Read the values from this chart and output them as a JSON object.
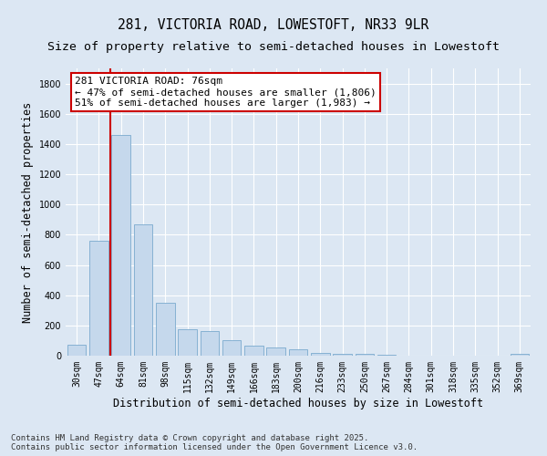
{
  "title_line1": "281, VICTORIA ROAD, LOWESTOFT, NR33 9LR",
  "title_line2": "Size of property relative to semi-detached houses in Lowestoft",
  "xlabel": "Distribution of semi-detached houses by size in Lowestoft",
  "ylabel": "Number of semi-detached properties",
  "categories": [
    "30sqm",
    "47sqm",
    "64sqm",
    "81sqm",
    "98sqm",
    "115sqm",
    "132sqm",
    "149sqm",
    "166sqm",
    "183sqm",
    "200sqm",
    "216sqm",
    "233sqm",
    "250sqm",
    "267sqm",
    "284sqm",
    "301sqm",
    "318sqm",
    "335sqm",
    "352sqm",
    "369sqm"
  ],
  "values": [
    75,
    760,
    1460,
    870,
    350,
    175,
    160,
    100,
    65,
    55,
    40,
    20,
    15,
    10,
    5,
    3,
    2,
    1,
    1,
    0,
    10
  ],
  "bar_color": "#c5d8ec",
  "bar_edge_color": "#7aaace",
  "vline_color": "#cc0000",
  "vline_x": 1.5,
  "annotation_text": "281 VICTORIA ROAD: 76sqm\n← 47% of semi-detached houses are smaller (1,806)\n51% of semi-detached houses are larger (1,983) →",
  "annotation_box_facecolor": "#ffffff",
  "annotation_box_edgecolor": "#cc0000",
  "ylim": [
    0,
    1900
  ],
  "yticks": [
    0,
    200,
    400,
    600,
    800,
    1000,
    1200,
    1400,
    1600,
    1800
  ],
  "background_color": "#dce7f3",
  "plot_bg_color": "#dce7f3",
  "grid_color": "#ffffff",
  "footer_text": "Contains HM Land Registry data © Crown copyright and database right 2025.\nContains public sector information licensed under the Open Government Licence v3.0.",
  "title_fontsize": 10.5,
  "subtitle_fontsize": 9.5,
  "axis_label_fontsize": 8.5,
  "tick_fontsize": 7,
  "annotation_fontsize": 8,
  "footer_fontsize": 6.5
}
